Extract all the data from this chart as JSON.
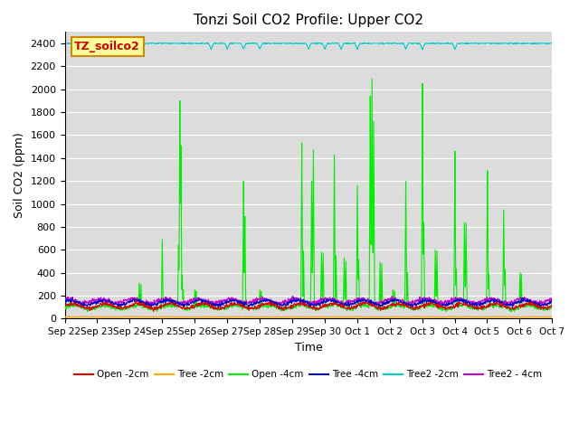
{
  "title": "Tonzi Soil CO2 Profile: Upper CO2",
  "xlabel": "Time",
  "ylabel": "Soil CO2 (ppm)",
  "ylim": [
    0,
    2500
  ],
  "background_color": "#dcdcdc",
  "legend_label": "TZ_soilco2",
  "legend_box_color": "#ffff99",
  "legend_box_edge": "#cc8800",
  "series": {
    "Open_2cm": {
      "color": "#dd0000",
      "lw": 0.8
    },
    "Tree_2cm": {
      "color": "#ffaa00",
      "lw": 1.0
    },
    "Open_4cm": {
      "color": "#00ee00",
      "lw": 0.8
    },
    "Tree_4cm": {
      "color": "#0000cc",
      "lw": 0.8
    },
    "Tree2_2cm": {
      "color": "#00cccc",
      "lw": 0.8
    },
    "Tree2_4cm": {
      "color": "#cc00cc",
      "lw": 0.8
    }
  },
  "tick_labels": [
    "Sep 22",
    "Sep 23",
    "Sep 24",
    "Sep 25",
    "Sep 26",
    "Sep 27",
    "Sep 28",
    "Sep 29",
    "Sep 30",
    "Oct 1",
    "Oct 2",
    "Oct 3",
    "Oct 4",
    "Oct 5",
    "Oct 6",
    "Oct 7"
  ],
  "tick_positions": [
    0,
    1,
    2,
    3,
    4,
    5,
    6,
    7,
    8,
    9,
    10,
    11,
    12,
    13,
    14,
    15
  ],
  "legend_entries": [
    "Open -2cm",
    "Tree -2cm",
    "Open -4cm",
    "Tree -4cm",
    "Tree2 -2cm",
    "Tree2 - 4cm"
  ],
  "legend_colors": [
    "#dd0000",
    "#ffaa00",
    "#00ee00",
    "#0000cc",
    "#00cccc",
    "#cc00cc"
  ]
}
